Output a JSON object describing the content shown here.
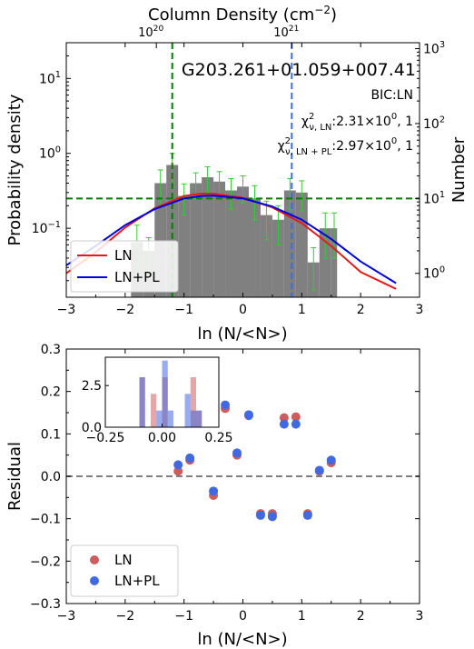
{
  "chart_data": [
    {
      "type": "bar",
      "title": "G203.261+01.059+007.41",
      "annotations": {
        "bic": "BIC:LN",
        "chi_ln_sym": "χ",
        "chi_ln_sup": "2",
        "chi_ln_sub": "ν, LN",
        "chi_ln_val": ":2.31×10",
        "chi_ln_exp": "0",
        "chi_ln_tail": ", 1",
        "chi_pl_sym": "χ",
        "chi_pl_sup": "2",
        "chi_pl_sub": "ν, LN + PL",
        "chi_pl_val": ":2.97×10",
        "chi_pl_exp": "0",
        "chi_pl_tail": ", 1"
      },
      "xlabel": "ln (N/<N>)",
      "ylabel": "Probability density",
      "ylabel_right": "Number",
      "xlabel_top_main": "Column Density (cm",
      "xlabel_top_sup": "−2",
      "xlabel_top_close": ")",
      "xlim": [
        -3,
        3
      ],
      "ylim_log": [
        0.012,
        30
      ],
      "yscale": "log",
      "x_ticks": [
        -3,
        -2,
        -1,
        0,
        1,
        2,
        3
      ],
      "x_tick_labels": [
        "−3",
        "−2",
        "−1",
        "0",
        "1",
        "2",
        "3"
      ],
      "y_ticks": [
        {
          "value": 0.1,
          "base": "10",
          "exp": "−1"
        },
        {
          "value": 1,
          "base": "10",
          "exp": "0"
        },
        {
          "value": 10,
          "base": "10",
          "exp": "1"
        }
      ],
      "y_right_ticks": [
        {
          "value": 1,
          "base": "10",
          "exp": "0"
        },
        {
          "value": 10,
          "base": "10",
          "exp": "1"
        },
        {
          "value": 100,
          "base": "10",
          "exp": "2"
        },
        {
          "value": 1000,
          "base": "10",
          "exp": "3"
        }
      ],
      "top_ticks": [
        {
          "x": -1.47,
          "base": "10",
          "exp": "20"
        },
        {
          "x": 0.83,
          "base": "10",
          "exp": "21"
        }
      ],
      "bins": [
        {
          "x0": -1.9,
          "x1": -1.7,
          "y": 0.065,
          "err": 0.045
        },
        {
          "x0": -1.7,
          "x1": -1.5,
          "y": 0.05,
          "err": 0.025
        },
        {
          "x0": -1.5,
          "x1": -1.3,
          "y": 0.4,
          "err": 0.2
        },
        {
          "x0": -1.3,
          "x1": -1.1,
          "y": 0.7,
          "err": 0.3
        },
        {
          "x0": -1.1,
          "x1": -0.9,
          "y": 0.27,
          "err": 0.12
        },
        {
          "x0": -0.9,
          "x1": -0.7,
          "y": 0.4,
          "err": 0.15
        },
        {
          "x0": -0.7,
          "x1": -0.5,
          "y": 0.48,
          "err": 0.18
        },
        {
          "x0": -0.5,
          "x1": -0.3,
          "y": 0.42,
          "err": 0.15
        },
        {
          "x0": -0.3,
          "x1": -0.1,
          "y": 0.32,
          "err": 0.14
        },
        {
          "x0": -0.1,
          "x1": 0.1,
          "y": 0.36,
          "err": 0.14
        },
        {
          "x0": 0.1,
          "x1": 0.3,
          "y": 0.25,
          "err": 0.12
        },
        {
          "x0": 0.3,
          "x1": 0.5,
          "y": 0.15,
          "err": 0.08
        },
        {
          "x0": 0.5,
          "x1": 0.7,
          "y": 0.13,
          "err": 0.07
        },
        {
          "x0": 0.7,
          "x1": 0.9,
          "y": 0.32,
          "err": 0.14
        },
        {
          "x0": 0.9,
          "x1": 1.1,
          "y": 0.3,
          "err": 0.13
        },
        {
          "x0": 1.1,
          "x1": 1.3,
          "y": 0.035,
          "err": 0.02
        },
        {
          "x0": 1.3,
          "x1": 1.5,
          "y": 0.1,
          "err": 0.06
        },
        {
          "x0": 1.5,
          "x1": 1.6,
          "y": 0.1,
          "err": 0.06
        }
      ],
      "series": [
        {
          "name": "LN",
          "color": "#e41a1c",
          "x": [
            -3.0,
            -2.5,
            -2.0,
            -1.5,
            -1.0,
            -0.7,
            -0.5,
            0.0,
            0.5,
            1.0,
            1.5,
            2.0,
            2.6
          ],
          "y": [
            0.025,
            0.048,
            0.102,
            0.185,
            0.27,
            0.29,
            0.29,
            0.255,
            0.19,
            0.117,
            0.058,
            0.026,
            0.0155
          ]
        },
        {
          "name": "LN+PL",
          "color": "#0000dd",
          "x": [
            -3.0,
            -2.5,
            -2.0,
            -1.5,
            -1.0,
            -0.7,
            -0.5,
            0.0,
            0.5,
            1.0,
            1.5,
            2.0,
            2.6
          ],
          "y": [
            0.032,
            0.058,
            0.11,
            0.18,
            0.25,
            0.27,
            0.272,
            0.25,
            0.195,
            0.13,
            0.072,
            0.036,
            0.0185
          ]
        }
      ],
      "vlines": [
        {
          "x": -1.2,
          "color": "#008000"
        },
        {
          "x": 0.83,
          "color": "#4169e1"
        }
      ],
      "hline": {
        "y": 0.25,
        "color": "#008000"
      },
      "legend_placement": "lower-left"
    },
    {
      "type": "scatter",
      "xlabel": "ln (N/<N>)",
      "ylabel": "Residual",
      "xlim": [
        -3,
        3
      ],
      "ylim": [
        -0.3,
        0.3
      ],
      "x_ticks": [
        -3,
        -2,
        -1,
        0,
        1,
        2,
        3
      ],
      "x_tick_labels": [
        "−3",
        "−2",
        "−1",
        "0",
        "1",
        "2",
        "3"
      ],
      "y_ticks": [
        -0.3,
        -0.2,
        -0.1,
        0.0,
        0.1,
        0.2,
        0.3
      ],
      "y_tick_labels": [
        "−0.3",
        "−0.2",
        "−0.1",
        "0.0",
        "0.1",
        "0.2",
        "0.3"
      ],
      "hline": 0,
      "legend_placement": "lower-left",
      "series": [
        {
          "name": "LN",
          "color": "#cd5c5c",
          "x": [
            -1.1,
            -0.9,
            -0.5,
            -0.3,
            -0.1,
            0.1,
            0.3,
            0.5,
            0.7,
            0.9,
            1.1,
            1.3,
            1.5
          ],
          "y": [
            0.012,
            0.038,
            -0.045,
            0.16,
            0.05,
            0.143,
            -0.088,
            -0.088,
            0.138,
            0.14,
            -0.088,
            0.012,
            0.032
          ]
        },
        {
          "name": "LN+PL",
          "color": "#4169e1",
          "x": [
            -1.1,
            -0.9,
            -0.5,
            -0.3,
            -0.1,
            0.1,
            0.3,
            0.5,
            0.7,
            0.9,
            1.1,
            1.3,
            1.5
          ],
          "y": [
            0.027,
            0.043,
            -0.035,
            0.168,
            0.055,
            0.145,
            -0.092,
            -0.095,
            0.123,
            0.123,
            -0.092,
            0.014,
            0.038
          ]
        }
      ],
      "inset": {
        "type": "histogram",
        "xlim": [
          -0.25,
          0.25
        ],
        "ylim": [
          0,
          4.2
        ],
        "x_ticks": [
          -0.25,
          0.0,
          0.25
        ],
        "x_tick_labels": [
          "−0.25",
          "0.00",
          "0.25"
        ],
        "y_ticks": [
          0.0,
          2.5
        ],
        "y_tick_labels": [
          "0.0",
          "2.5"
        ],
        "series": [
          {
            "name": "LN",
            "color": "#cd5c5c",
            "bins": [
              {
                "x0": -0.1,
                "x1": -0.075,
                "y": 3
              },
              {
                "x0": -0.05,
                "x1": -0.025,
                "y": 2
              },
              {
                "x0": 0.0,
                "x1": 0.025,
                "y": 3
              },
              {
                "x0": 0.125,
                "x1": 0.15,
                "y": 3
              },
              {
                "x0": 0.15,
                "x1": 0.175,
                "y": 1
              }
            ]
          },
          {
            "name": "LN+PL",
            "color": "#4169e1",
            "bins": [
              {
                "x0": -0.1,
                "x1": -0.075,
                "y": 3
              },
              {
                "x0": -0.025,
                "x1": 0.0,
                "y": 1
              },
              {
                "x0": 0.0,
                "x1": 0.025,
                "y": 4
              },
              {
                "x0": 0.025,
                "x1": 0.05,
                "y": 1
              },
              {
                "x0": 0.1,
                "x1": 0.125,
                "y": 2
              },
              {
                "x0": 0.125,
                "x1": 0.15,
                "y": 1
              },
              {
                "x0": 0.15,
                "x1": 0.175,
                "y": 1
              }
            ]
          }
        ]
      }
    }
  ]
}
